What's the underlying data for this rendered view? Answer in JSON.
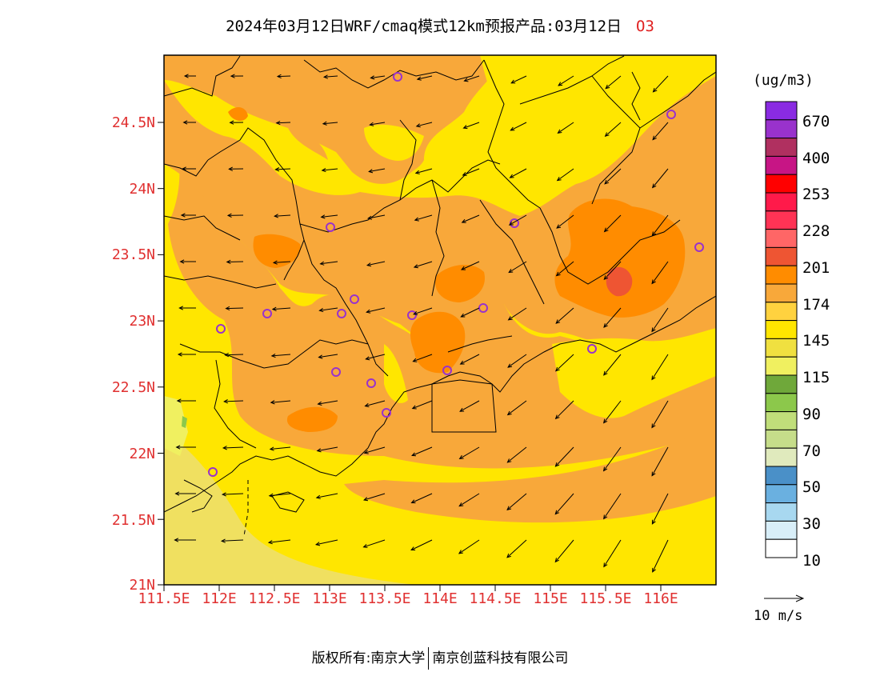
{
  "title": {
    "main": "2024年03月12日WRF/cmaq模式12km预报产品:03月12日",
    "species": "O3"
  },
  "axes": {
    "lat_labels": [
      "24.5N",
      "24N",
      "23.5N",
      "23N",
      "22.5N",
      "22N",
      "21.5N",
      "21N"
    ],
    "lon_labels": [
      "111.5E",
      "112E",
      "112.5E",
      "113E",
      "113.5E",
      "114E",
      "114.5E",
      "115E",
      "115.5E",
      "116E"
    ],
    "lon_range": [
      111.5,
      116.5
    ],
    "lat_range": [
      21.0,
      25.0
    ]
  },
  "colorbar": {
    "unit": "(ug/m3)",
    "labels": [
      "670",
      "400",
      "253",
      "228",
      "201",
      "174",
      "145",
      "115",
      "90",
      "70",
      "50",
      "30",
      "10"
    ],
    "colors_top_to_bottom": [
      "#8a2be2",
      "#9932cc",
      "#b03060",
      "#c71585",
      "#ff0000",
      "#ff1a4a",
      "#ff3355",
      "#ff6666",
      "#ee5533",
      "#ff8c00",
      "#f8a83a",
      "#ffd23f",
      "#ffe600",
      "#f0e040",
      "#f0f060",
      "#6fa83a",
      "#8cc84b",
      "#c0de7a",
      "#c6dd8a",
      "#e0eabd",
      "#4a90c8",
      "#6ab0e0",
      "#a8d8f0",
      "#d8eef8",
      "#ffffff"
    ]
  },
  "reference_vector": {
    "label": "10 m/s"
  },
  "copyright": {
    "left": "版权所有:南京大学",
    "right": "南京创蓝科技有限公司"
  },
  "field_colors": {
    "light_yellow": "#f0e060",
    "yellow": "#ffe600",
    "light_orange": "#f8a83a",
    "orange": "#ff8c00",
    "red_orange": "#ee5533",
    "pale_yellow": "#f0f060",
    "green": "#8cc84b",
    "station_marker": "#9932cc",
    "boundary": "#000000"
  }
}
